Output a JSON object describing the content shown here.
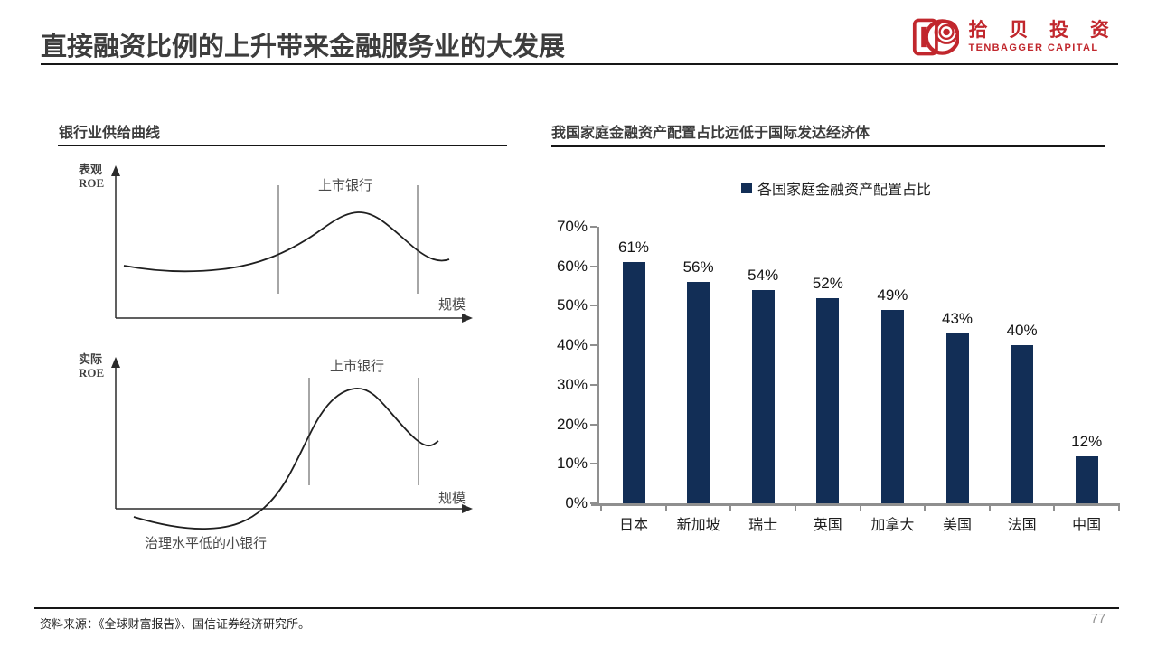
{
  "slide": {
    "title": "直接融资比例的上升带来金融服务业的大发展",
    "source_note": "资料来源：《全球财富报告》、国信证券经济研究所。",
    "page_number": "77"
  },
  "logo": {
    "cn_name": "拾 贝 投 资",
    "en_name": "TENBAGGER CAPITAL",
    "brand_color": "#C1272D"
  },
  "left_panel": {
    "header": "银行业供给曲线",
    "diagram_top": {
      "y_axis_label_line1": "表观",
      "y_axis_label_line2": "ROE",
      "x_axis_label": "规模",
      "annotation": "上市银行"
    },
    "diagram_bottom": {
      "y_axis_label_line1": "实际",
      "y_axis_label_line2": "ROE",
      "x_axis_label": "规模",
      "annotation_top": "上市银行",
      "annotation_bottom": "治理水平低的小银行"
    }
  },
  "right_panel": {
    "header": "我国家庭金融资产配置占比远低于国际发达经济体",
    "legend_label": "各国家庭金融资产配置占比"
  },
  "chart_data": [
    {
      "type": "bar",
      "title": "各国家庭金融资产配置占比",
      "categories": [
        "日本",
        "新加坡",
        "瑞士",
        "英国",
        "加拿大",
        "美国",
        "法国",
        "中国"
      ],
      "values": [
        61,
        56,
        54,
        52,
        49,
        43,
        40,
        12
      ],
      "data_labels": [
        "61%",
        "56%",
        "54%",
        "52%",
        "49%",
        "43%",
        "40%",
        "12%"
      ],
      "xlabel": "",
      "ylabel": "",
      "ylim": [
        0,
        70
      ],
      "y_tick_step": 10,
      "y_tick_labels": [
        "0%",
        "10%",
        "20%",
        "30%",
        "40%",
        "50%",
        "60%",
        "70%"
      ],
      "bar_color": "#122E56",
      "axis_color": "#8F8F8F",
      "grid": false,
      "legend_position": "top-center"
    },
    {
      "type": "line",
      "title": "银行业供给曲线（表观ROE）",
      "xlabel": "规模",
      "ylabel": "表观ROE",
      "annotations": [
        "上市银行：两条竖直参考线之间的区间",
        "曲线先平缓微降，随后上升至峰值，峰值位于上市银行区间内，其后回落"
      ],
      "points_normalized": [
        [
          0.02,
          0.35
        ],
        [
          0.22,
          0.32
        ],
        [
          0.45,
          0.43
        ],
        [
          0.63,
          0.72
        ],
        [
          0.8,
          0.45
        ],
        [
          0.95,
          0.38
        ]
      ],
      "grid": false
    },
    {
      "type": "line",
      "title": "银行业供给曲线（实际ROE）",
      "xlabel": "规模",
      "ylabel": "实际ROE",
      "annotations": [
        "上市银行：两条竖直参考线之间的区间",
        "治理水平低的小银行：曲线左端，实际ROE为负",
        "曲线自负值区下探后陡峭上升越过横轴，峰值位于上市银行区间内，其后回落并于尾部微翘"
      ],
      "points_normalized": [
        [
          0.06,
          -0.06
        ],
        [
          0.25,
          -0.13
        ],
        [
          0.42,
          0.0
        ],
        [
          0.55,
          0.45
        ],
        [
          0.68,
          0.78
        ],
        [
          0.85,
          0.42
        ],
        [
          0.9,
          0.4
        ],
        [
          0.93,
          0.44
        ]
      ],
      "grid": false
    }
  ]
}
